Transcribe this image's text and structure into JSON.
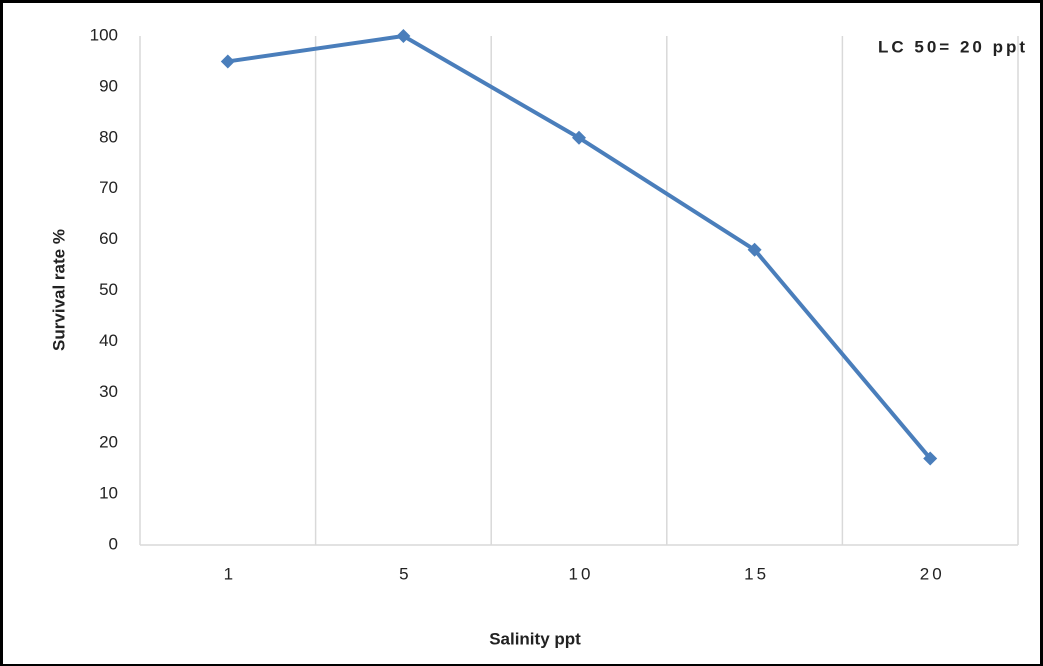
{
  "chart_data": {
    "type": "line",
    "annotation": "LC 50= 20 ppt",
    "x_label": "Salinity ppt",
    "y_label": "Survival rate %",
    "categories": [
      "1",
      "5",
      "10",
      "15",
      "20"
    ],
    "values": [
      95,
      100,
      80,
      58,
      17
    ],
    "color": "#4a7ebb",
    "ylim": [
      0,
      100
    ],
    "yticks": [
      0,
      10,
      20,
      30,
      40,
      50,
      60,
      70,
      80,
      90,
      100
    ],
    "grid": true
  }
}
